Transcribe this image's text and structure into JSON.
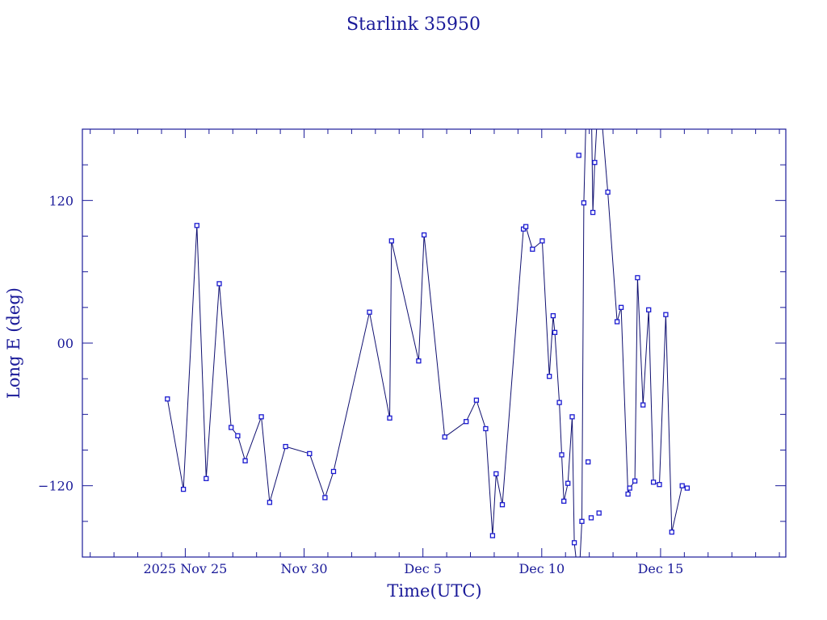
{
  "chart_data": {
    "type": "line",
    "title": "Starlink 35950",
    "xlabel": "Time(UTC)",
    "ylabel": "Long E (deg)",
    "xlim": [
      -4.33,
      25.27
    ],
    "ylim": [
      -180,
      180
    ],
    "x_ticks": [
      {
        "value": 0,
        "label": "2025 Nov 25"
      },
      {
        "value": 5,
        "label": "Nov 30"
      },
      {
        "value": 10,
        "label": "Dec  5"
      },
      {
        "value": 15,
        "label": "Dec 10"
      },
      {
        "value": 20,
        "label": "Dec 15"
      }
    ],
    "y_ticks": [
      {
        "value": -120,
        "label": "−120"
      },
      {
        "value": 0,
        "label": "00"
      },
      {
        "value": 120,
        "label": "120"
      }
    ],
    "x_unit": "days from Nov 25",
    "wrap_longitude": true,
    "x": [
      -0.75,
      -0.08,
      0.49,
      0.88,
      1.43,
      1.93,
      2.21,
      2.52,
      3.2,
      3.55,
      4.22,
      5.23,
      5.88,
      6.24,
      7.75,
      8.6,
      8.68,
      9.82,
      10.05,
      10.92,
      11.82,
      12.25,
      12.64,
      12.93,
      13.08,
      13.34,
      14.23,
      14.33,
      14.61,
      15.02,
      15.32,
      15.48,
      15.55,
      15.74,
      15.84,
      15.93,
      16.1,
      16.28,
      16.37,
      16.56,
      16.69,
      16.77,
      16.95,
      17.08,
      17.15,
      17.23,
      17.41,
      17.78,
      18.17,
      18.34,
      18.63,
      18.7,
      18.92,
      19.03,
      19.26,
      19.5,
      19.7,
      19.95,
      20.22,
      20.47,
      20.91,
      21.12
    ],
    "y": [
      -47,
      -123,
      99,
      -114,
      50,
      -71,
      -78,
      -99,
      -62,
      -134,
      -87,
      -93,
      -130,
      -108,
      26,
      -63,
      86,
      -15,
      91,
      -79,
      -66,
      -48,
      -72,
      -162,
      -110,
      -136,
      96,
      98,
      79,
      86,
      -28,
      23,
      9,
      -50,
      -94,
      -133,
      -118,
      -62,
      -168,
      -202,
      -150,
      118,
      260,
      213,
      110,
      152,
      217,
      127,
      18,
      30,
      -127,
      -122,
      -116,
      55,
      -52,
      28,
      -117,
      -119,
      24,
      -159,
      -120,
      -122
    ]
  }
}
